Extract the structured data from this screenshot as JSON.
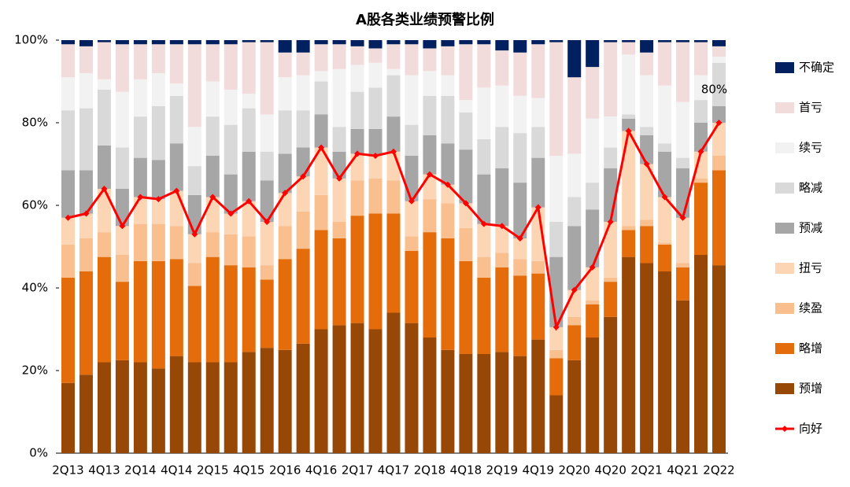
{
  "chart_data": {
    "type": "bar",
    "stacked": true,
    "title": "A股各类业绩预警比例",
    "categories": [
      "2Q13",
      null,
      "4Q13",
      null,
      "2Q14",
      null,
      "4Q14",
      null,
      "2Q15",
      null,
      "4Q15",
      null,
      "2Q16",
      null,
      "4Q16",
      null,
      "2Q17",
      null,
      "4Q17",
      null,
      "2Q18",
      null,
      "4Q18",
      null,
      "2Q19",
      null,
      "4Q19",
      null,
      "2Q20",
      null,
      "4Q20",
      null,
      "2Q21",
      null,
      "4Q21",
      null,
      "2Q22"
    ],
    "ylim": [
      0,
      100
    ],
    "yticks": [
      {
        "value": 0,
        "label": "0%"
      },
      {
        "value": 20,
        "label": "20%"
      },
      {
        "value": 40,
        "label": "40%"
      },
      {
        "value": 60,
        "label": "60%"
      },
      {
        "value": 80,
        "label": "80%"
      },
      {
        "value": 100,
        "label": "100%"
      }
    ],
    "legend": "right",
    "series": [
      {
        "name": "预增",
        "color": "#974806",
        "values": [
          17,
          19,
          22,
          22.5,
          22,
          20.5,
          23.5,
          22,
          22,
          22,
          24.5,
          25.5,
          25,
          26.5,
          30,
          31,
          31.5,
          30,
          34,
          31.5,
          28,
          25,
          24,
          24,
          24.5,
          23.5,
          27.5,
          14,
          22.5,
          28,
          33,
          47.5,
          46,
          44,
          37,
          48,
          45.5
        ]
      },
      {
        "name": "略增",
        "color": "#e46c0a",
        "values": [
          25.5,
          25,
          25.5,
          19,
          24.5,
          26,
          23.5,
          18.5,
          25.5,
          23.5,
          20.5,
          16.5,
          22,
          23,
          24,
          21,
          26,
          28,
          24,
          17.5,
          25.5,
          27,
          22.5,
          18.5,
          20.5,
          19.5,
          16,
          9,
          8.5,
          8,
          8.5,
          6.5,
          9,
          6.5,
          8,
          17.5,
          23
        ]
      },
      {
        "name": "续盈",
        "color": "#f9bf8f",
        "values": [
          8,
          8,
          6,
          6.5,
          9,
          9,
          8,
          5.5,
          6,
          7.5,
          7.5,
          3.5,
          8,
          9,
          8.5,
          4,
          8.5,
          8.5,
          8,
          3.5,
          8,
          8.5,
          8,
          5,
          3.5,
          4,
          3,
          2,
          2,
          1,
          1,
          1,
          1.5,
          0.5,
          1,
          1,
          3.5
        ]
      },
      {
        "name": "扭亏",
        "color": "#fcd5b4",
        "values": [
          6.5,
          6,
          10.5,
          7,
          6.5,
          6,
          8.5,
          7,
          8.5,
          5,
          8.5,
          10.5,
          8,
          8.5,
          11.5,
          10.5,
          6.5,
          5.5,
          7,
          8.5,
          6,
          4.5,
          6,
          8,
          6.5,
          5,
          13,
          5.5,
          6.5,
          8,
          13.5,
          23,
          13.5,
          11,
          11,
          6.5,
          8
        ]
      },
      {
        "name": "预减",
        "color": "#a6a6a6",
        "values": [
          11.5,
          10.5,
          10.5,
          9,
          9.5,
          9.5,
          11.5,
          9.5,
          10,
          9.5,
          12,
          10,
          9.5,
          7,
          8,
          6.5,
          6,
          6.5,
          8.5,
          11,
          9.5,
          10,
          13,
          12,
          14,
          13.5,
          12,
          17,
          15.5,
          14,
          13,
          3,
          7,
          11,
          12,
          7,
          4
        ]
      },
      {
        "name": "略减",
        "color": "#d9d9d9",
        "values": [
          14.5,
          15,
          13.5,
          10,
          10,
          13,
          11.5,
          7,
          9.5,
          12,
          10.5,
          7,
          10.5,
          9,
          8,
          6,
          9,
          10,
          10,
          7.5,
          9.5,
          11.5,
          9,
          8.5,
          10,
          12,
          7.5,
          8.5,
          7,
          6.5,
          5,
          1,
          2,
          2,
          2.5,
          5.5,
          10.5
        ]
      },
      {
        "name": "续亏",
        "color": "#f2f2f2",
        "values": [
          8,
          8.5,
          2.5,
          13.5,
          9,
          8,
          3,
          9.5,
          8.5,
          8.5,
          3.5,
          9,
          8,
          8.5,
          2.5,
          14,
          6.5,
          6,
          1.5,
          12,
          6,
          5,
          3,
          12.5,
          10,
          9,
          7,
          16,
          10.5,
          15.5,
          7.5,
          14.5,
          12.5,
          14,
          13.5,
          6,
          1.5
        ]
      },
      {
        "name": "首亏",
        "color": "#f2dcdb",
        "values": [
          8,
          6.5,
          9,
          11.5,
          8.5,
          7,
          9.5,
          20,
          9,
          11,
          12.5,
          17.5,
          6,
          5.5,
          6.5,
          6,
          4.5,
          3.5,
          6,
          7.5,
          5.5,
          7,
          13.5,
          10.5,
          8.5,
          10.5,
          13,
          27.5,
          18.5,
          12.5,
          18,
          3,
          5.5,
          10.5,
          14.5,
          8,
          2.5
        ]
      },
      {
        "name": "不确定",
        "color": "#002060",
        "values": [
          1,
          1.5,
          0.5,
          1,
          1,
          1,
          1,
          1,
          1,
          1,
          0.5,
          0.5,
          3,
          3,
          1,
          1,
          1.5,
          2,
          1,
          1,
          2,
          1.5,
          1,
          1,
          2.5,
          3,
          1,
          0.5,
          9,
          6.5,
          0.5,
          0.5,
          3,
          0.5,
          0.5,
          0.5,
          1.5
        ]
      },
      {
        "name": "向好",
        "type": "line",
        "color": "#ff0000",
        "values": [
          57,
          58,
          64,
          55,
          62,
          61.5,
          63.5,
          53,
          62,
          58,
          61,
          56,
          63,
          67,
          74,
          66.5,
          72.5,
          72,
          73,
          61,
          67.5,
          65,
          60.5,
          55.5,
          55,
          52,
          59.5,
          30.5,
          39.5,
          45,
          56,
          78,
          70,
          62,
          57,
          73,
          80
        ],
        "value_labels": [
          null,
          null,
          null,
          null,
          null,
          null,
          null,
          null,
          null,
          null,
          null,
          null,
          null,
          null,
          null,
          null,
          null,
          null,
          null,
          null,
          null,
          null,
          null,
          null,
          null,
          null,
          null,
          null,
          null,
          null,
          null,
          null,
          null,
          null,
          null,
          null,
          "80%"
        ]
      }
    ]
  }
}
